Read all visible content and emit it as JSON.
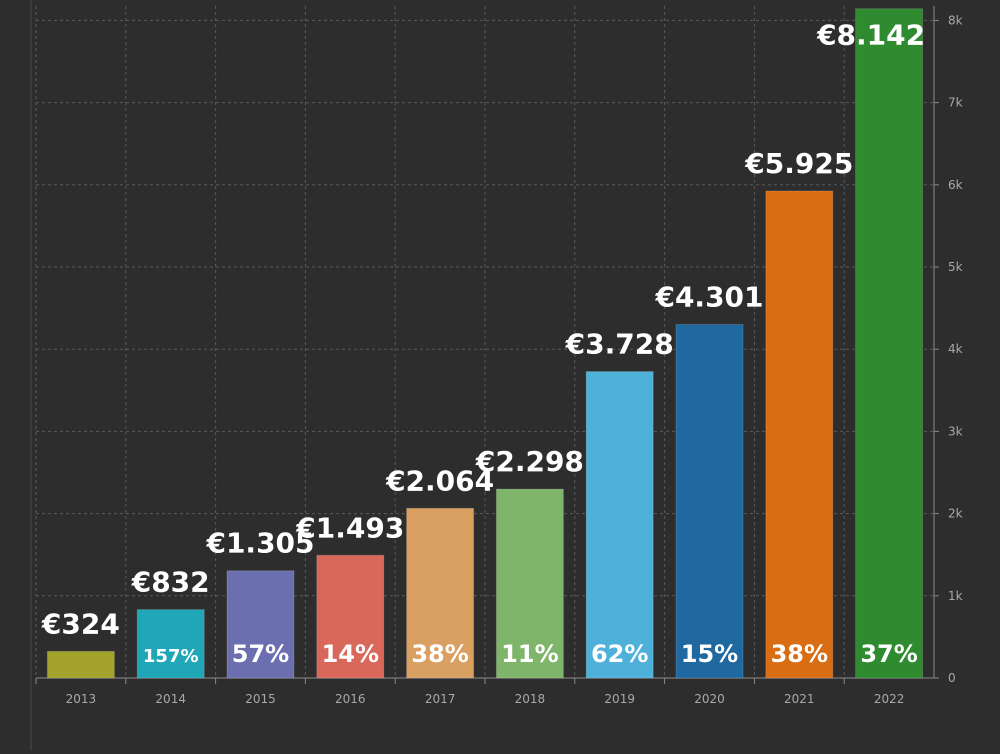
{
  "chart_data": {
    "type": "bar",
    "categories": [
      "2013",
      "2014",
      "2015",
      "2016",
      "2017",
      "2018",
      "2019",
      "2020",
      "2021",
      "2022"
    ],
    "values": [
      324,
      832,
      1305,
      1493,
      2064,
      2298,
      3728,
      4301,
      5925,
      8142
    ],
    "value_labels": [
      "€324",
      "€832",
      "€1.305",
      "€1.493",
      "€2.064",
      "€2.298",
      "€3.728",
      "€4.301",
      "€5.925",
      "€8.142"
    ],
    "growth_labels": [
      "",
      "157%",
      "57%",
      "14%",
      "38%",
      "11%",
      "62%",
      "15%",
      "38%",
      "37%"
    ],
    "colors": [
      "#a3a22a",
      "#1fa7b8",
      "#6b6fb0",
      "#d9685a",
      "#d9a062",
      "#7fb56a",
      "#4eb1d9",
      "#2068a0",
      "#d86d14",
      "#2f8b2f"
    ],
    "y_ticks": [
      {
        "value": 0,
        "label": "0"
      },
      {
        "value": 1000,
        "label": "1k"
      },
      {
        "value": 2000,
        "label": "2k"
      },
      {
        "value": 3000,
        "label": "3k"
      },
      {
        "value": 4000,
        "label": "4k"
      },
      {
        "value": 5000,
        "label": "5k"
      },
      {
        "value": 6000,
        "label": "6k"
      },
      {
        "value": 7000,
        "label": "7k"
      },
      {
        "value": 8000,
        "label": "8k"
      }
    ],
    "ylim": [
      0,
      8250
    ],
    "y_axis_side": "right",
    "grid": true,
    "title": "",
    "xlabel": "",
    "ylabel": ""
  },
  "theme": {
    "background": "#2d2d2d",
    "grid_color": "#5a5a5a",
    "axis_color": "#8a8a8a",
    "text_color": "#ffffff",
    "tick_color": "#a8a8a8"
  }
}
